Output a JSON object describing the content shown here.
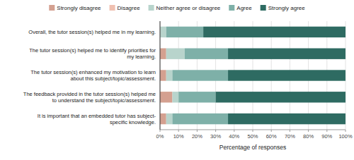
{
  "chart_data": {
    "type": "bar",
    "orientation": "horizontal",
    "stacked": true,
    "categories": [
      "Overall, the tutor session(s) helped me in my learning.",
      "The tutor session(s) helped me to identify priorities for\nmy learning.",
      "The tutor session(s) enhanced my motivation to learn\nabout this subject/topic/assessment.",
      "The feedback provided in the tutor session(s) helped me\nto understand the subject/topic/assessment.",
      "It is important that an embedded tutor has subject-\nspecific knowledge."
    ],
    "series": [
      {
        "name": "Strongly disagree",
        "color": "#d4a090",
        "values": [
          0,
          3.33,
          3.33,
          6.67,
          3.33
        ]
      },
      {
        "name": "Disagree",
        "color": "#f0c0b0",
        "values": [
          0,
          0,
          0,
          0,
          0
        ]
      },
      {
        "name": "Neither agree or disagree",
        "color": "#b8d4cc",
        "values": [
          3.33,
          10.0,
          3.33,
          3.33,
          3.33
        ]
      },
      {
        "name": "Agree",
        "color": "#7eb0a8",
        "values": [
          20.0,
          23.33,
          30.0,
          20.0,
          30.0
        ]
      },
      {
        "name": "Strongly agree",
        "color": "#2e6b62",
        "values": [
          76.67,
          63.33,
          63.33,
          70.0,
          63.33
        ]
      }
    ],
    "xlabel": "Percentage of responses",
    "xlim": [
      0,
      100
    ],
    "xticks": [
      {
        "value": 0,
        "label": "0%"
      },
      {
        "value": 10,
        "label": "10%"
      },
      {
        "value": 20,
        "label": "20%"
      },
      {
        "value": 30,
        "label": "30%"
      },
      {
        "value": 40,
        "label": "40%"
      },
      {
        "value": 50,
        "label": "50%"
      },
      {
        "value": 60,
        "label": "60%"
      },
      {
        "value": 70,
        "label": "70%"
      },
      {
        "value": 80,
        "label": "80%"
      },
      {
        "value": 90,
        "label": "90%"
      },
      {
        "value": 100,
        "label": "100%"
      }
    ],
    "grid": true,
    "legend": "top"
  }
}
